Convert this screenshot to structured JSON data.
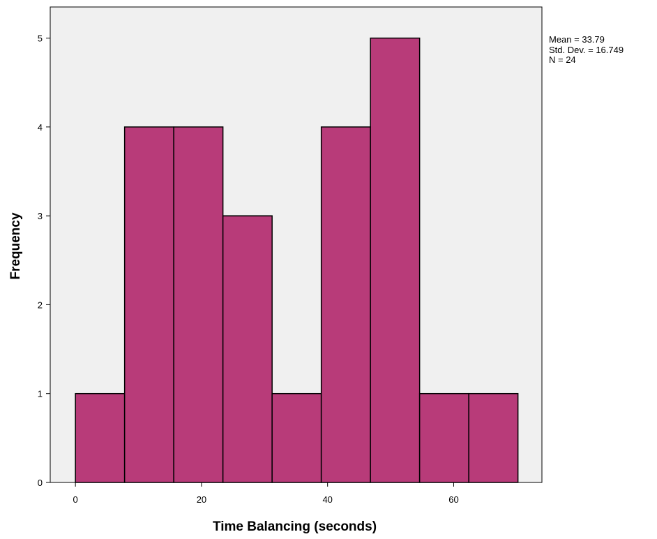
{
  "chart_data": {
    "type": "histogram",
    "xlabel": "Time Balancing (seconds)",
    "ylabel": "Frequency",
    "bin_edges": [
      0,
      7.8,
      15.6,
      23.4,
      31.2,
      39.0,
      46.8,
      54.6,
      62.4,
      70.2
    ],
    "values": [
      1,
      4,
      4,
      3,
      1,
      4,
      5,
      1,
      1
    ],
    "xlim": [
      -4,
      74
    ],
    "ylim": [
      0,
      5.35
    ],
    "xticks": [
      0,
      20,
      40,
      60
    ],
    "yticks": [
      0,
      1,
      2,
      3,
      4,
      5
    ],
    "bar_color": "#b83b79",
    "plot_background": "#f0f0f0",
    "grid": false,
    "stats": {
      "mean": "Mean = 33.79",
      "std_dev": "Std. Dev. = 16.749",
      "n": "N = 24"
    }
  }
}
